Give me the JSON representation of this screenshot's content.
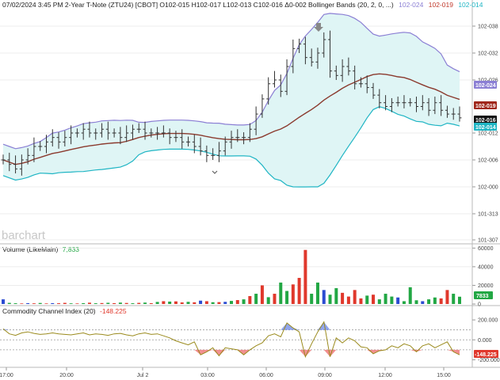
{
  "header": {
    "text": "07/02/2024 3:45 PM 2-Year T-Note (ZTU24) [CBOT] O102-015 H102-017 L102-013 C102-016 Δ0-002 Bollinger Bands  (20, 2, 0, ...)",
    "bb_upper": "102-024",
    "bb_mid": "102-019",
    "bb_lower": "102-014"
  },
  "watermark": "barchart",
  "colors": {
    "upper": "#8b7fd4",
    "middle": "#8b3a2e",
    "lower": "#1fb5c4",
    "band_fill": "#dff5f5",
    "bar": "#333333",
    "vol_up": "#22a744",
    "vol_down": "#e0382c",
    "vol_flat": "#2b4bd1",
    "cci_line": "#9a8a1c",
    "cci_pos": "#6a86e8",
    "cci_neg": "#ec6a6a"
  },
  "chart_data": [
    {
      "type": "ohlc",
      "title": "2-Year T-Note (ZTU24) [CBOT]",
      "y_ticks": [
        "102-038",
        "102-032",
        "102-026",
        "102-012",
        "102-006",
        "102-000",
        "101-313",
        "101-307"
      ],
      "y_ticks_dec": [
        102.038,
        102.032,
        102.026,
        102.012,
        102.006,
        102.0,
        101.313,
        101.307
      ],
      "ylim": [
        101.305,
        102.042
      ],
      "x_labels": [
        "17:00",
        "20:00",
        "Jul 2",
        "03:00",
        "06:00",
        "09:00",
        "12:00",
        "15:00"
      ],
      "last_values": {
        "upper": "102-024",
        "middle": "102-019",
        "close": "102-016",
        "lower": "102-014"
      },
      "series": [
        {
          "name": "price",
          "values": [
            102.006,
            102.005,
            102.004,
            102.006,
            102.007,
            102.009,
            102.009,
            102.01,
            102.011,
            102.01,
            102.011,
            102.012,
            102.012,
            102.013,
            102.012,
            102.012,
            102.013,
            102.012,
            102.012,
            102.011,
            102.012,
            102.013,
            102.013,
            102.012,
            102.012,
            102.012,
            102.012,
            102.011,
            102.011,
            102.01,
            102.01,
            102.009,
            102.008,
            102.007,
            102.007,
            102.008,
            102.01,
            102.011,
            102.011,
            102.011,
            102.013,
            102.017,
            102.021,
            102.025,
            102.026,
            102.023,
            102.029,
            102.033,
            102.034,
            102.031,
            102.03,
            102.032,
            102.035,
            102.028,
            102.027,
            102.029,
            102.028,
            102.025,
            102.025,
            102.024,
            102.022,
            102.02,
            102.019,
            102.02,
            102.02,
            102.02,
            102.02,
            102.019,
            102.02,
            102.018,
            102.02,
            102.018,
            102.017,
            102.017,
            102.016
          ]
        }
      ]
    },
    {
      "type": "bar",
      "title": "Volume  (LikeMain)",
      "legend_value": "7,833",
      "last_value": "7833",
      "y_ticks": [
        "60000",
        "40000",
        "20000",
        "0"
      ],
      "ylim": [
        0,
        62000
      ],
      "values": [
        5000,
        1200,
        800,
        600,
        900,
        700,
        1100,
        600,
        900,
        800,
        1200,
        700,
        600,
        900,
        1400,
        800,
        1000,
        1300,
        900,
        1500,
        1100,
        800,
        1200,
        1500,
        900,
        2200,
        3000,
        2600,
        2800,
        1700,
        2300,
        1800,
        3600,
        3000,
        1900,
        2000,
        2300,
        3300,
        4200,
        5000,
        8500,
        11000,
        20000,
        7300,
        11000,
        23000,
        14000,
        21000,
        28000,
        58000,
        11000,
        23000,
        15000,
        10000,
        17000,
        12000,
        8000,
        15000,
        6000,
        9000,
        10000,
        5000,
        11000,
        8000,
        7000,
        3000,
        18000,
        4000,
        3000,
        5000,
        7000,
        6000,
        15000,
        11000,
        7833
      ],
      "colors": [
        "d",
        "u",
        "u",
        "d",
        "u",
        "d",
        "u",
        "d",
        "u",
        "d",
        "d",
        "u",
        "d",
        "u",
        "d",
        "u",
        "d",
        "u",
        "d",
        "u",
        "d",
        "u",
        "d",
        "u",
        "d",
        "u",
        "d",
        "u",
        "d",
        "d",
        "u",
        "d",
        "u",
        "d",
        "u",
        "d",
        "u",
        "u",
        "d",
        "u",
        "d",
        "u",
        "d",
        "u",
        "d",
        "u",
        "u",
        "d",
        "d",
        "d",
        "u",
        "u",
        "u",
        "u",
        "u",
        "d",
        "d",
        "d",
        "d",
        "u",
        "d",
        "u",
        "u",
        "u",
        "u",
        "u",
        "u",
        "u",
        "u",
        "u",
        "u",
        "d",
        "d",
        "u",
        "u"
      ]
    },
    {
      "type": "line",
      "title": "Commodity Channel Index  (20)",
      "legend_value": "-148.225",
      "last_value": "-148.225",
      "y_ticks": [
        "200.000",
        "0.000",
        "-200.000"
      ],
      "ylim": [
        -260,
        320
      ],
      "ref_lines": [
        100,
        0,
        -100
      ],
      "values": [
        110,
        60,
        45,
        70,
        80,
        65,
        55,
        60,
        70,
        60,
        55,
        50,
        60,
        70,
        50,
        60,
        55,
        45,
        60,
        65,
        50,
        40,
        60,
        70,
        55,
        60,
        40,
        20,
        -10,
        -30,
        -50,
        -20,
        -150,
        -120,
        -80,
        -160,
        -80,
        -90,
        -100,
        -150,
        -100,
        -60,
        -30,
        40,
        60,
        30,
        170,
        120,
        80,
        -170,
        -40,
        80,
        180,
        -170,
        20,
        -30,
        20,
        -10,
        -70,
        -80,
        -140,
        -110,
        -100,
        -60,
        -80,
        -40,
        -60,
        -120,
        -60,
        -40,
        -80,
        -50,
        -20,
        -120,
        -150
      ]
    }
  ]
}
